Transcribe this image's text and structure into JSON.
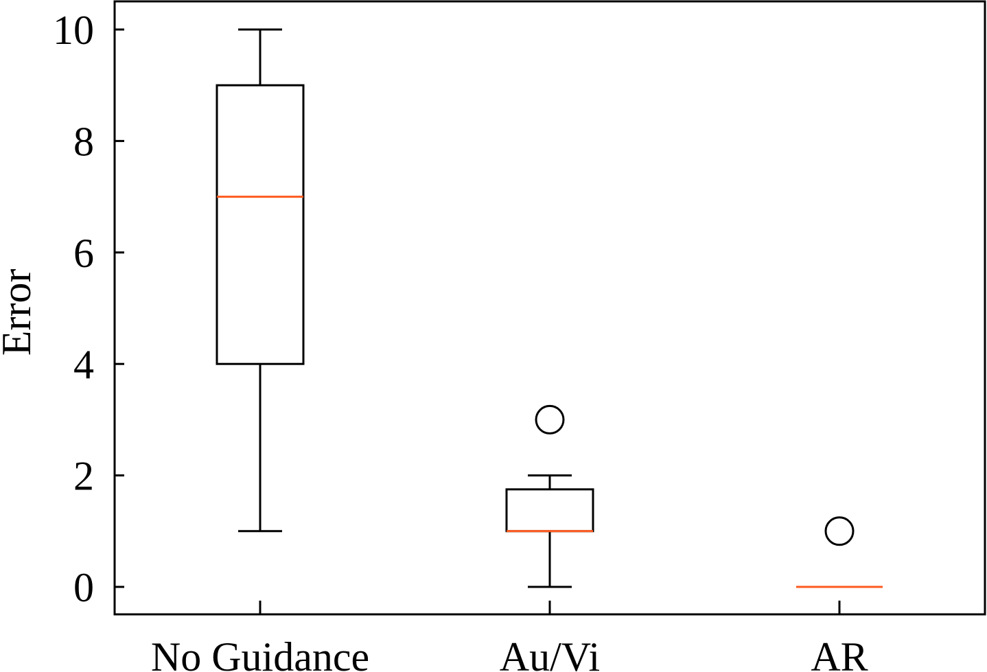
{
  "chart_data": {
    "type": "box",
    "ylabel": "Error",
    "ylim": [
      -0.5,
      10.5
    ],
    "yticks": [
      0,
      2,
      4,
      6,
      8,
      10
    ],
    "grid": false,
    "categories": [
      "No Guidance",
      "Au/Vi",
      "AR"
    ],
    "boxes": [
      {
        "category": "No Guidance",
        "whisker_low": 1,
        "q1": 4,
        "median": 7,
        "q3": 9,
        "whisker_high": 10,
        "outliers": []
      },
      {
        "category": "Au/Vi",
        "whisker_low": 0,
        "q1": 1,
        "median": 1,
        "q3": 1.75,
        "whisker_high": 2,
        "outliers": [
          3
        ]
      },
      {
        "category": "AR",
        "whisker_low": 0,
        "q1": 0,
        "median": 0,
        "q3": 0,
        "whisker_high": 0,
        "outliers": [
          1
        ]
      }
    ],
    "colors": {
      "box": "#000000",
      "median": "#ff5a1f",
      "outlier": "#000000"
    }
  }
}
